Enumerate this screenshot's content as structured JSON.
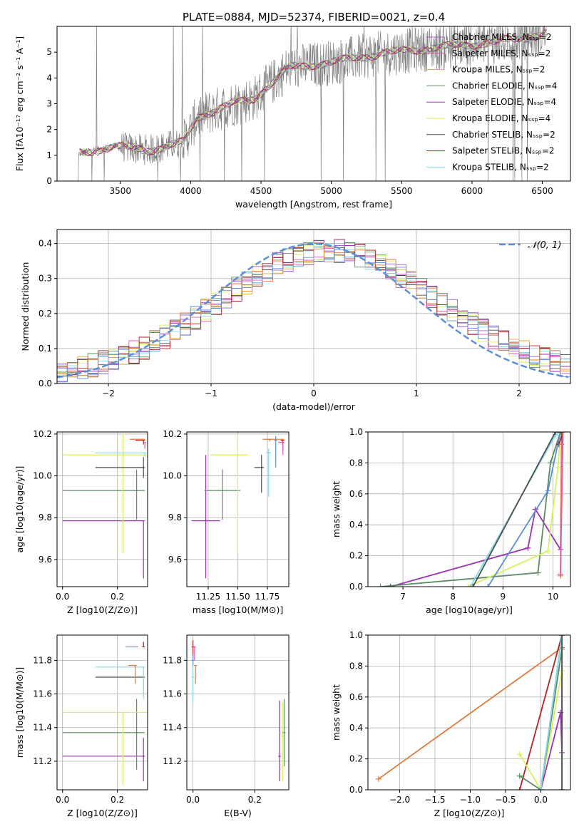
{
  "figure_title": "PLATE=0884, MJD=52374, FIBERID=0021, z=0.4",
  "model_colors": [
    "#a15cd6",
    "#e65aaf",
    "#e8a23a",
    "#5f8a63",
    "#9b30b0",
    "#d6f25a",
    "#4d4d4d",
    "#b22222",
    "#7fd8e8",
    "#5b8fd8",
    "#e07a3a"
  ],
  "chart_data": [
    {
      "id": "spectrum",
      "type": "line",
      "title": "PLATE=0884, MJD=52374, FIBERID=0021, z=0.4",
      "xlabel": "wavelength [Angstrom, rest frame]",
      "ylabel": "Flux [fλ10⁻¹⁷ erg cm⁻² s⁻¹ A⁻¹]",
      "xlim": [
        3050,
        6700
      ],
      "ylim": [
        0,
        6
      ],
      "xticks": [
        3500,
        4000,
        4500,
        5000,
        5500,
        6000,
        6500
      ],
      "yticks": [
        0,
        1,
        2,
        3,
        4,
        5
      ],
      "grid": false,
      "legend_position": "top-right",
      "data_range_angstrom": [
        3200,
        6530
      ],
      "approx_continuum": {
        "x": [
          3200,
          3450,
          3700,
          3950,
          4050,
          4300,
          4450,
          4700,
          5000,
          5300,
          5600,
          6000,
          6300,
          6530
        ],
        "y": [
          1.05,
          1.35,
          1.2,
          1.5,
          2.5,
          3.0,
          3.2,
          4.4,
          4.6,
          4.9,
          5.1,
          5.3,
          5.5,
          5.75
        ]
      },
      "series": [
        {
          "name": "Chabrier MILES, N_SSP=2",
          "color": "#a15cd6"
        },
        {
          "name": "Salpeter MILES, N_SSP=2",
          "color": "#e65aaf"
        },
        {
          "name": "Kroupa MILES, N_SSP=2",
          "color": "#e8a23a"
        },
        {
          "name": "Chabrier ELODIE, N_SSP=4",
          "color": "#5f8a63"
        },
        {
          "name": "Salpeter ELODIE, N_SSP=4",
          "color": "#9b30b0"
        },
        {
          "name": "Kroupa ELODIE, N_SSP=4",
          "color": "#d6f25a"
        },
        {
          "name": "Chabrier STELIB, N_SSP=2",
          "color": "#4d4d4d"
        },
        {
          "name": "Salpeter STELIB, N_SSP=2",
          "color": "#b22222"
        },
        {
          "name": "Kroupa STELIB, N_SSP=2",
          "color": "#7fd8e8"
        }
      ]
    },
    {
      "id": "residuals",
      "type": "line",
      "xlabel": "(data-model)/error",
      "ylabel": "Normed distribution",
      "xlim": [
        -2.5,
        2.5
      ],
      "ylim": [
        0,
        0.44
      ],
      "xticks": [
        -2,
        -1,
        0,
        1,
        2
      ],
      "yticks": [
        0.0,
        0.1,
        0.2,
        0.3,
        0.4
      ],
      "grid": true,
      "legend_position": "top-right",
      "legend": [
        "𝒩(0, 1)"
      ],
      "gaussian": {
        "mean": 0,
        "sigma": 1,
        "color": "#5b8fd8",
        "style": "dashed"
      },
      "bin_width": 0.1
    },
    {
      "id": "age-vs-Z",
      "type": "scatter",
      "xlabel": "Z [log10(Z/Z⊙)]",
      "ylabel": "age  [log10(age/yr)]",
      "xlim": [
        -0.02,
        0.31
      ],
      "ylim": [
        9.47,
        10.21
      ],
      "xticks": [
        0.0,
        0.2
      ],
      "yticks": [
        9.6,
        9.8,
        10.0,
        10.2
      ],
      "grid": true,
      "points": [
        {
          "color": "#9b30b0",
          "x": 0.295,
          "xerr": [
            0.295,
            0.0
          ],
          "y": 9.785,
          "yerr": [
            0.275,
            0.0
          ]
        },
        {
          "color": "#5f8a63",
          "x": 0.27,
          "xerr": [
            0.27,
            0.03
          ],
          "y": 9.93,
          "yerr": [
            0.14,
            0.1
          ]
        },
        {
          "color": "#d6f25a",
          "x": 0.22,
          "xerr": [
            0.22,
            0.09
          ],
          "y": 10.1,
          "yerr": [
            0.47,
            0.1
          ]
        },
        {
          "color": "#4d4d4d",
          "x": 0.295,
          "xerr": [
            0.175,
            0.0
          ],
          "y": 10.04,
          "yerr": [
            0.05,
            0.05
          ]
        },
        {
          "color": "#7fd8e8",
          "x": 0.3,
          "xerr": [
            0.18,
            0.0
          ],
          "y": 10.11,
          "yerr": [
            0.02,
            0.0
          ]
        },
        {
          "color": "#e07a3a",
          "x": 0.25,
          "xerr": [
            0.0,
            0.05
          ],
          "y": 10.175,
          "yerr": [
            0.0,
            0.0
          ]
        },
        {
          "color": "#b22222",
          "x": 0.295,
          "xerr": [
            0.03,
            0.0
          ],
          "y": 10.17,
          "yerr": [
            0.02,
            0.0
          ]
        },
        {
          "color": "#e65aaf",
          "x": 0.3,
          "xerr": [
            0.0,
            0.0
          ],
          "y": 10.16,
          "yerr": [
            0.03,
            0.0
          ]
        }
      ]
    },
    {
      "id": "age-vs-mass",
      "type": "scatter",
      "xlabel": "mass [log10(M/M⊙)]",
      "ylabel": "",
      "xlim": [
        11.07,
        11.93
      ],
      "ylim": [
        9.47,
        10.21
      ],
      "xticks": [
        11.25,
        11.5,
        11.75
      ],
      "xtick_labels": [
        "11.25",
        "11.50",
        "11.75"
      ],
      "yticks": [
        9.6,
        9.8,
        10.0,
        10.2
      ],
      "grid": true,
      "points": [
        {
          "color": "#9b30b0",
          "x": 11.23,
          "xerr": [
            0.12,
            0.12
          ],
          "y": 9.785,
          "yerr": [
            0.275,
            0.315
          ]
        },
        {
          "color": "#5f8a63",
          "x": 11.37,
          "xerr": [
            0.15,
            0.15
          ],
          "y": 9.93,
          "yerr": [
            0.14,
            0.1
          ]
        },
        {
          "color": "#d6f25a",
          "x": 11.5,
          "xerr": [
            0.23,
            0.08
          ],
          "y": 10.1,
          "yerr": [
            0.47,
            0.1
          ]
        },
        {
          "color": "#4d4d4d",
          "x": 11.7,
          "xerr": [
            0.06,
            0.02
          ],
          "y": 10.04,
          "yerr": [
            0.12,
            0.06
          ]
        },
        {
          "color": "#7fd8e8",
          "x": 11.76,
          "xerr": [
            0.02,
            0.02
          ],
          "y": 10.11,
          "yerr": [
            0.21,
            0.02
          ]
        },
        {
          "color": "#5b8fd8",
          "x": 11.82,
          "xerr": [
            0.0,
            0.0
          ],
          "y": 10.17,
          "yerr": [
            0.13,
            0.02
          ]
        },
        {
          "color": "#e07a3a",
          "x": 11.77,
          "xerr": [
            0.06,
            0.12
          ],
          "y": 10.175,
          "yerr": [
            0.01,
            0.0
          ]
        },
        {
          "color": "#b22222",
          "x": 11.88,
          "xerr": [
            0.02,
            0.0
          ],
          "y": 10.17,
          "yerr": [
            0.05,
            0.0
          ]
        },
        {
          "color": "#e65aaf",
          "x": 11.88,
          "xerr": [
            0.04,
            0.0
          ],
          "y": 10.16,
          "yerr": [
            0.06,
            0.0
          ]
        }
      ]
    },
    {
      "id": "massweight-vs-age",
      "type": "line",
      "xlabel": "age  [log10(age/yr)]",
      "ylabel": "mass weight",
      "xlim": [
        6.3,
        10.35
      ],
      "ylim": [
        0,
        1.0
      ],
      "xticks": [
        7,
        8,
        9,
        10
      ],
      "yticks": [
        0.0,
        0.2,
        0.4,
        0.6,
        0.8,
        1.0
      ],
      "grid": true,
      "series": [
        {
          "color": "#9b30b0",
          "x": [
            6.75,
            9.5,
            9.65,
            10.15,
            10.18
          ],
          "y": [
            0.0,
            0.25,
            0.5,
            0.24,
            1.0
          ]
        },
        {
          "color": "#5f8a63",
          "x": [
            6.55,
            9.7,
            9.95,
            10.15
          ],
          "y": [
            0.0,
            0.09,
            0.8,
            1.0
          ]
        },
        {
          "color": "#d6f25a",
          "x": [
            8.3,
            9.9,
            10.1,
            10.15
          ],
          "y": [
            0.0,
            0.23,
            0.77,
            1.0
          ]
        },
        {
          "color": "#5b8fd8",
          "x": [
            8.7,
            9.9,
            10.15
          ],
          "y": [
            0.0,
            0.62,
            1.0
          ]
        },
        {
          "color": "#7fd8e8",
          "x": [
            8.35,
            10.05,
            10.15
          ],
          "y": [
            0.0,
            0.98,
            1.0
          ]
        },
        {
          "color": "#4d4d4d",
          "x": [
            8.4,
            10.05,
            10.15
          ],
          "y": [
            0.0,
            1.0,
            1.0
          ]
        },
        {
          "color": "#b22222",
          "x": [
            10.12,
            10.2
          ],
          "y": [
            0.92,
            1.0
          ]
        },
        {
          "color": "#e07a3a",
          "x": [
            10.15,
            10.17
          ],
          "y": [
            0.07,
            0.92
          ]
        },
        {
          "color": "#e65aaf",
          "x": [
            10.15,
            10.2
          ],
          "y": [
            0.08,
            1.0
          ]
        }
      ]
    },
    {
      "id": "mass-vs-Z",
      "type": "scatter",
      "xlabel": "Z [log10(Z/Z⊙)]",
      "ylabel": "mass [log10(M/M⊙)]",
      "xlim": [
        -0.02,
        0.31
      ],
      "ylim": [
        11.03,
        11.95
      ],
      "xticks": [
        0.0,
        0.2
      ],
      "yticks": [
        11.2,
        11.4,
        11.6,
        11.8
      ],
      "grid": true,
      "points": [
        {
          "color": "#9b30b0",
          "x": 0.295,
          "xerr": [
            0.295,
            0.0
          ],
          "y": 11.23,
          "yerr": [
            0.15,
            0.11
          ]
        },
        {
          "color": "#5f8a63",
          "x": 0.27,
          "xerr": [
            0.27,
            0.03
          ],
          "y": 11.37,
          "yerr": [
            0.22,
            0.2
          ]
        },
        {
          "color": "#d6f25a",
          "x": 0.22,
          "xerr": [
            0.22,
            0.09
          ],
          "y": 11.49,
          "yerr": [
            0.43,
            0.0
          ]
        },
        {
          "color": "#4d4d4d",
          "x": 0.295,
          "xerr": [
            0.175,
            0.0
          ],
          "y": 11.7,
          "yerr": [
            0.0,
            0.0
          ]
        },
        {
          "color": "#7fd8e8",
          "x": 0.295,
          "xerr": [
            0.175,
            0.0
          ],
          "y": 11.76,
          "yerr": [
            0.19,
            0.0
          ]
        },
        {
          "color": "#e07a3a",
          "x": 0.265,
          "xerr": [
            0.025,
            0.0
          ],
          "y": 11.77,
          "yerr": [
            0.11,
            0.0
          ]
        },
        {
          "color": "#e65aaf",
          "x": 0.27,
          "xerr": [
            0.04,
            0.0
          ],
          "y": 11.88,
          "yerr": [
            0.0,
            0.0
          ]
        },
        {
          "color": "#b22222",
          "x": 0.295,
          "xerr": [
            0.0,
            0.0
          ],
          "y": 11.88,
          "yerr": [
            0.0,
            0.03
          ]
        }
      ]
    },
    {
      "id": "mass-vs-ebv",
      "type": "scatter",
      "xlabel": "E(B-V)",
      "ylabel": "",
      "xlim": [
        -0.02,
        0.31
      ],
      "ylim": [
        11.03,
        11.95
      ],
      "xticks": [
        0.0,
        0.2
      ],
      "yticks": [
        11.2,
        11.4,
        11.6,
        11.8
      ],
      "grid": true,
      "points": [
        {
          "color": "#9b30b0",
          "x": 0.28,
          "y": 11.23,
          "yerr": [
            0.15,
            0.33
          ]
        },
        {
          "color": "#d6f25a",
          "x": 0.29,
          "y": 11.35,
          "yerr": [
            0.27,
            0.2
          ]
        },
        {
          "color": "#5f8a63",
          "x": 0.295,
          "y": 11.37,
          "yerr": [
            0.2,
            0.2
          ]
        },
        {
          "color": "#b22222",
          "x": 0.0,
          "y": 11.88,
          "yerr": [
            0.06,
            0.04
          ]
        },
        {
          "color": "#e65aaf",
          "x": 0.005,
          "y": 11.88,
          "yerr": [
            0.08,
            0.0
          ]
        },
        {
          "color": "#5b8fd8",
          "x": 0.0,
          "y": 11.8,
          "yerr": [
            0.03,
            0.03
          ]
        },
        {
          "color": "#7fd8e8",
          "x": 0.0,
          "y": 11.7,
          "yerr": [
            0.15,
            0.07
          ]
        },
        {
          "color": "#e07a3a",
          "x": 0.008,
          "y": 11.77,
          "yerr": [
            0.11,
            0.0
          ]
        }
      ]
    },
    {
      "id": "massweight-vs-Z",
      "type": "line",
      "xlabel": "Z [log10(Z/Z⊙)]",
      "ylabel": "mass weight",
      "xlim": [
        -2.45,
        0.42
      ],
      "ylim": [
        0,
        1.0
      ],
      "xticks": [
        -2.0,
        -1.5,
        -1.0,
        -0.5,
        0.0
      ],
      "yticks": [
        0.0,
        0.2,
        0.4,
        0.6,
        0.8,
        1.0
      ],
      "grid": true,
      "series": [
        {
          "color": "#e07a3a",
          "x": [
            -2.3,
            0.3
          ],
          "y": [
            0.07,
            0.92
          ]
        },
        {
          "color": "#b22222",
          "x": [
            -0.3,
            0.3
          ],
          "y": [
            0.0,
            1.0
          ]
        },
        {
          "color": "#d6f25a",
          "x": [
            -0.3,
            0.0,
            0.3
          ],
          "y": [
            0.23,
            0.0,
            0.77
          ]
        },
        {
          "color": "#5f8a63",
          "x": [
            -0.3,
            0.0,
            0.3
          ],
          "y": [
            0.09,
            0.0,
            0.91
          ]
        },
        {
          "color": "#9b30b0",
          "x": [
            0.0,
            0.28,
            0.3
          ],
          "y": [
            0.0,
            0.5,
            0.24
          ]
        },
        {
          "color": "#5b8fd8",
          "x": [
            0.0,
            0.3,
            0.3
          ],
          "y": [
            0.0,
            1.0,
            0.0
          ]
        },
        {
          "color": "#7fd8e8",
          "x": [
            0.0,
            0.3
          ],
          "y": [
            0.0,
            1.0
          ]
        },
        {
          "color": "#4d4d4d",
          "x": [
            0.3,
            0.3
          ],
          "y": [
            0.0,
            1.0
          ]
        }
      ]
    }
  ]
}
